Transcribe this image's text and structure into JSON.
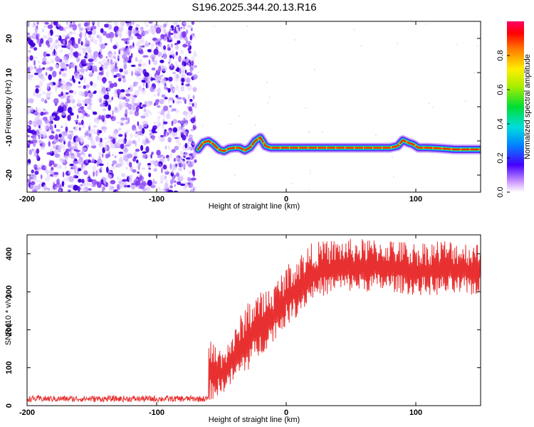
{
  "title": "S196.2025.344.20.13.R16",
  "chart_data": [
    {
      "type": "heatmap",
      "name": "spectrogram",
      "xlabel": "Height of straight line (km)",
      "ylabel": "Frequency (Hz)",
      "xlim": [
        -200,
        150
      ],
      "ylim": [
        -25,
        25
      ],
      "xticks": [
        -200,
        -100,
        0,
        100
      ],
      "yticks": [
        20,
        10,
        0,
        -10,
        -20
      ],
      "noise_region_x": [
        -200,
        -70
      ],
      "signal_trace": {
        "x": [
          -68,
          -64,
          -60,
          -56,
          -52,
          -48,
          -44,
          -40,
          -36,
          -32,
          -28,
          -24,
          -20,
          -16,
          -12,
          -8,
          -4,
          0,
          10,
          20,
          30,
          40,
          50,
          60,
          70,
          80,
          86,
          90,
          94,
          98,
          102,
          110,
          120,
          130,
          140,
          150
        ],
        "y": [
          -12.5,
          -10.5,
          -10.0,
          -11.0,
          -12.5,
          -13.0,
          -12.2,
          -12.0,
          -12.0,
          -12.8,
          -12.0,
          -10.0,
          -9.0,
          -11.5,
          -12.0,
          -12.0,
          -12.0,
          -12.0,
          -12.0,
          -12.0,
          -12.0,
          -12.0,
          -12.0,
          -12.0,
          -12.0,
          -12.0,
          -11.5,
          -9.8,
          -10.5,
          -11.0,
          -12.0,
          -12.0,
          -12.2,
          -12.5,
          -12.5,
          -12.5
        ]
      },
      "colorbar": {
        "label": "Normalized spectral amplitude",
        "range": [
          0,
          1
        ],
        "ticks": [
          0.0,
          0.2,
          0.4,
          0.6,
          0.8
        ],
        "tick_labels": [
          "0.0",
          "0.2",
          "0.4",
          "0.6",
          "0.8"
        ]
      }
    },
    {
      "type": "line",
      "name": "snr",
      "xlabel": "Height of straight line (km)",
      "ylabel": "SNR (10 * v/v)",
      "xlim": [
        -200,
        150
      ],
      "ylim": [
        0,
        450
      ],
      "xticks": [
        -200,
        -100,
        0,
        100
      ],
      "yticks": [
        0,
        100,
        200,
        300,
        400
      ],
      "color": "#e83030",
      "baseline": {
        "x_start": -200,
        "x_end": -60,
        "mean": 18,
        "jitter": 8
      },
      "envelope": {
        "x": [
          -60,
          -50,
          -40,
          -30,
          -20,
          -10,
          0,
          10,
          20,
          40,
          60,
          80,
          100,
          120,
          150
        ],
        "low": [
          10,
          30,
          60,
          90,
          130,
          170,
          210,
          240,
          280,
          300,
          300,
          300,
          290,
          290,
          290
        ],
        "high": [
          180,
          150,
          200,
          280,
          300,
          320,
          370,
          400,
          430,
          440,
          440,
          440,
          430,
          440,
          430
        ]
      }
    }
  ]
}
